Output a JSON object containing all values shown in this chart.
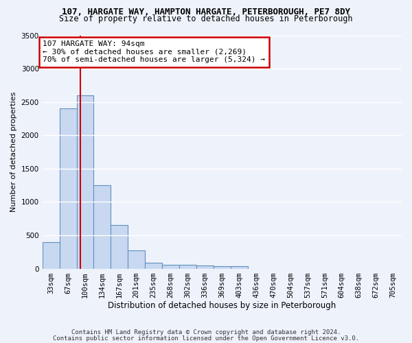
{
  "title_line1": "107, HARGATE WAY, HAMPTON HARGATE, PETERBOROUGH, PE7 8DY",
  "title_line2": "Size of property relative to detached houses in Peterborough",
  "xlabel": "Distribution of detached houses by size in Peterborough",
  "ylabel": "Number of detached properties",
  "footer_line1": "Contains HM Land Registry data © Crown copyright and database right 2024.",
  "footer_line2": "Contains public sector information licensed under the Open Government Licence v3.0.",
  "bin_labels": [
    "33sqm",
    "67sqm",
    "100sqm",
    "134sqm",
    "167sqm",
    "201sqm",
    "235sqm",
    "268sqm",
    "302sqm",
    "336sqm",
    "369sqm",
    "403sqm",
    "436sqm",
    "470sqm",
    "504sqm",
    "537sqm",
    "571sqm",
    "604sqm",
    "638sqm",
    "672sqm",
    "705sqm"
  ],
  "bar_values": [
    400,
    2400,
    2600,
    1250,
    650,
    270,
    90,
    60,
    60,
    50,
    40,
    35,
    0,
    0,
    0,
    0,
    0,
    0,
    0,
    0,
    0
  ],
  "bar_color": "#c8d8f0",
  "bar_edge_color": "#6090c0",
  "background_color": "#eef2fb",
  "grid_color": "#ffffff",
  "ylim": [
    0,
    3500
  ],
  "yticks": [
    0,
    500,
    1000,
    1500,
    2000,
    2500,
    3000,
    3500
  ],
  "red_line_x": 1.73,
  "annotation_text": "107 HARGATE WAY: 94sqm\n← 30% of detached houses are smaller (2,269)\n70% of semi-detached houses are larger (5,324) →",
  "annotation_box_color": "#ffffff",
  "annotation_edge_color": "#cc0000",
  "red_line_color": "#cc0000",
  "title1_fontsize": 9,
  "title2_fontsize": 8.5,
  "ylabel_fontsize": 8,
  "xlabel_fontsize": 8.5,
  "tick_fontsize": 7.5,
  "footer_fontsize": 6.5,
  "annot_fontsize": 8
}
